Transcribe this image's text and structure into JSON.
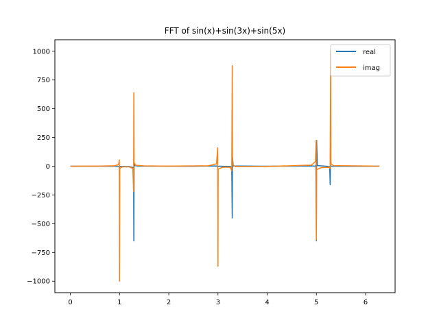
{
  "chart_data": {
    "type": "line",
    "title": "FFT of sin(x)+sin(3x)+sin(5x)",
    "xlabel": "",
    "ylabel": "",
    "xlim": [
      -0.315,
      6.6
    ],
    "ylim": [
      -1100,
      1100
    ],
    "x_ticks": [
      0,
      1,
      2,
      3,
      4,
      5,
      6
    ],
    "y_ticks": [
      -1000,
      -750,
      -500,
      -250,
      0,
      250,
      500,
      750,
      1000
    ],
    "grid": false,
    "legend_position": "top-right",
    "series": [
      {
        "name": "real",
        "color": "#1f77b4",
        "points": [
          [
            0.0,
            0
          ],
          [
            0.97,
            0
          ],
          [
            0.99,
            -2
          ],
          [
            1.0,
            -10
          ],
          [
            1.01,
            -2
          ],
          [
            1.2,
            -3
          ],
          [
            1.27,
            -12
          ],
          [
            1.285,
            -30
          ],
          [
            1.29,
            -650
          ],
          [
            1.295,
            20
          ],
          [
            1.31,
            5
          ],
          [
            1.4,
            1
          ],
          [
            2.5,
            0
          ],
          [
            2.97,
            2
          ],
          [
            3.0,
            -5
          ],
          [
            3.02,
            0
          ],
          [
            3.25,
            -2
          ],
          [
            3.28,
            -10
          ],
          [
            3.29,
            -450
          ],
          [
            3.295,
            80
          ],
          [
            3.31,
            2
          ],
          [
            4.0,
            0
          ],
          [
            4.98,
            2
          ],
          [
            4.99,
            10
          ],
          [
            5.0,
            -650
          ],
          [
            5.005,
            225
          ],
          [
            5.02,
            5
          ],
          [
            5.2,
            0
          ],
          [
            5.27,
            -5
          ],
          [
            5.28,
            -160
          ],
          [
            5.285,
            5
          ],
          [
            5.3,
            0
          ],
          [
            6.28,
            0
          ]
        ]
      },
      {
        "name": "imag",
        "color": "#ff7f0e",
        "points": [
          [
            0.0,
            0
          ],
          [
            0.5,
            1
          ],
          [
            0.9,
            4
          ],
          [
            0.98,
            15
          ],
          [
            0.995,
            55
          ],
          [
            1.0,
            -1000
          ],
          [
            1.005,
            -20
          ],
          [
            1.05,
            -6
          ],
          [
            1.2,
            -6
          ],
          [
            1.27,
            -20
          ],
          [
            1.285,
            -220
          ],
          [
            1.29,
            640
          ],
          [
            1.295,
            30
          ],
          [
            1.33,
            8
          ],
          [
            1.5,
            3
          ],
          [
            2.0,
            1
          ],
          [
            2.8,
            4
          ],
          [
            2.97,
            20
          ],
          [
            2.995,
            160
          ],
          [
            3.0,
            -870
          ],
          [
            3.005,
            -25
          ],
          [
            3.1,
            -8
          ],
          [
            3.25,
            -10
          ],
          [
            3.28,
            -40
          ],
          [
            3.29,
            875
          ],
          [
            3.295,
            15
          ],
          [
            3.35,
            -3
          ],
          [
            4.0,
            -2
          ],
          [
            4.9,
            10
          ],
          [
            4.98,
            40
          ],
          [
            4.995,
            225
          ],
          [
            5.0,
            -640
          ],
          [
            5.005,
            -30
          ],
          [
            5.1,
            -12
          ],
          [
            5.26,
            -10
          ],
          [
            5.28,
            -20
          ],
          [
            5.29,
            1005
          ],
          [
            5.295,
            20
          ],
          [
            5.35,
            5
          ],
          [
            6.0,
            2
          ],
          [
            6.28,
            1
          ]
        ]
      }
    ]
  }
}
